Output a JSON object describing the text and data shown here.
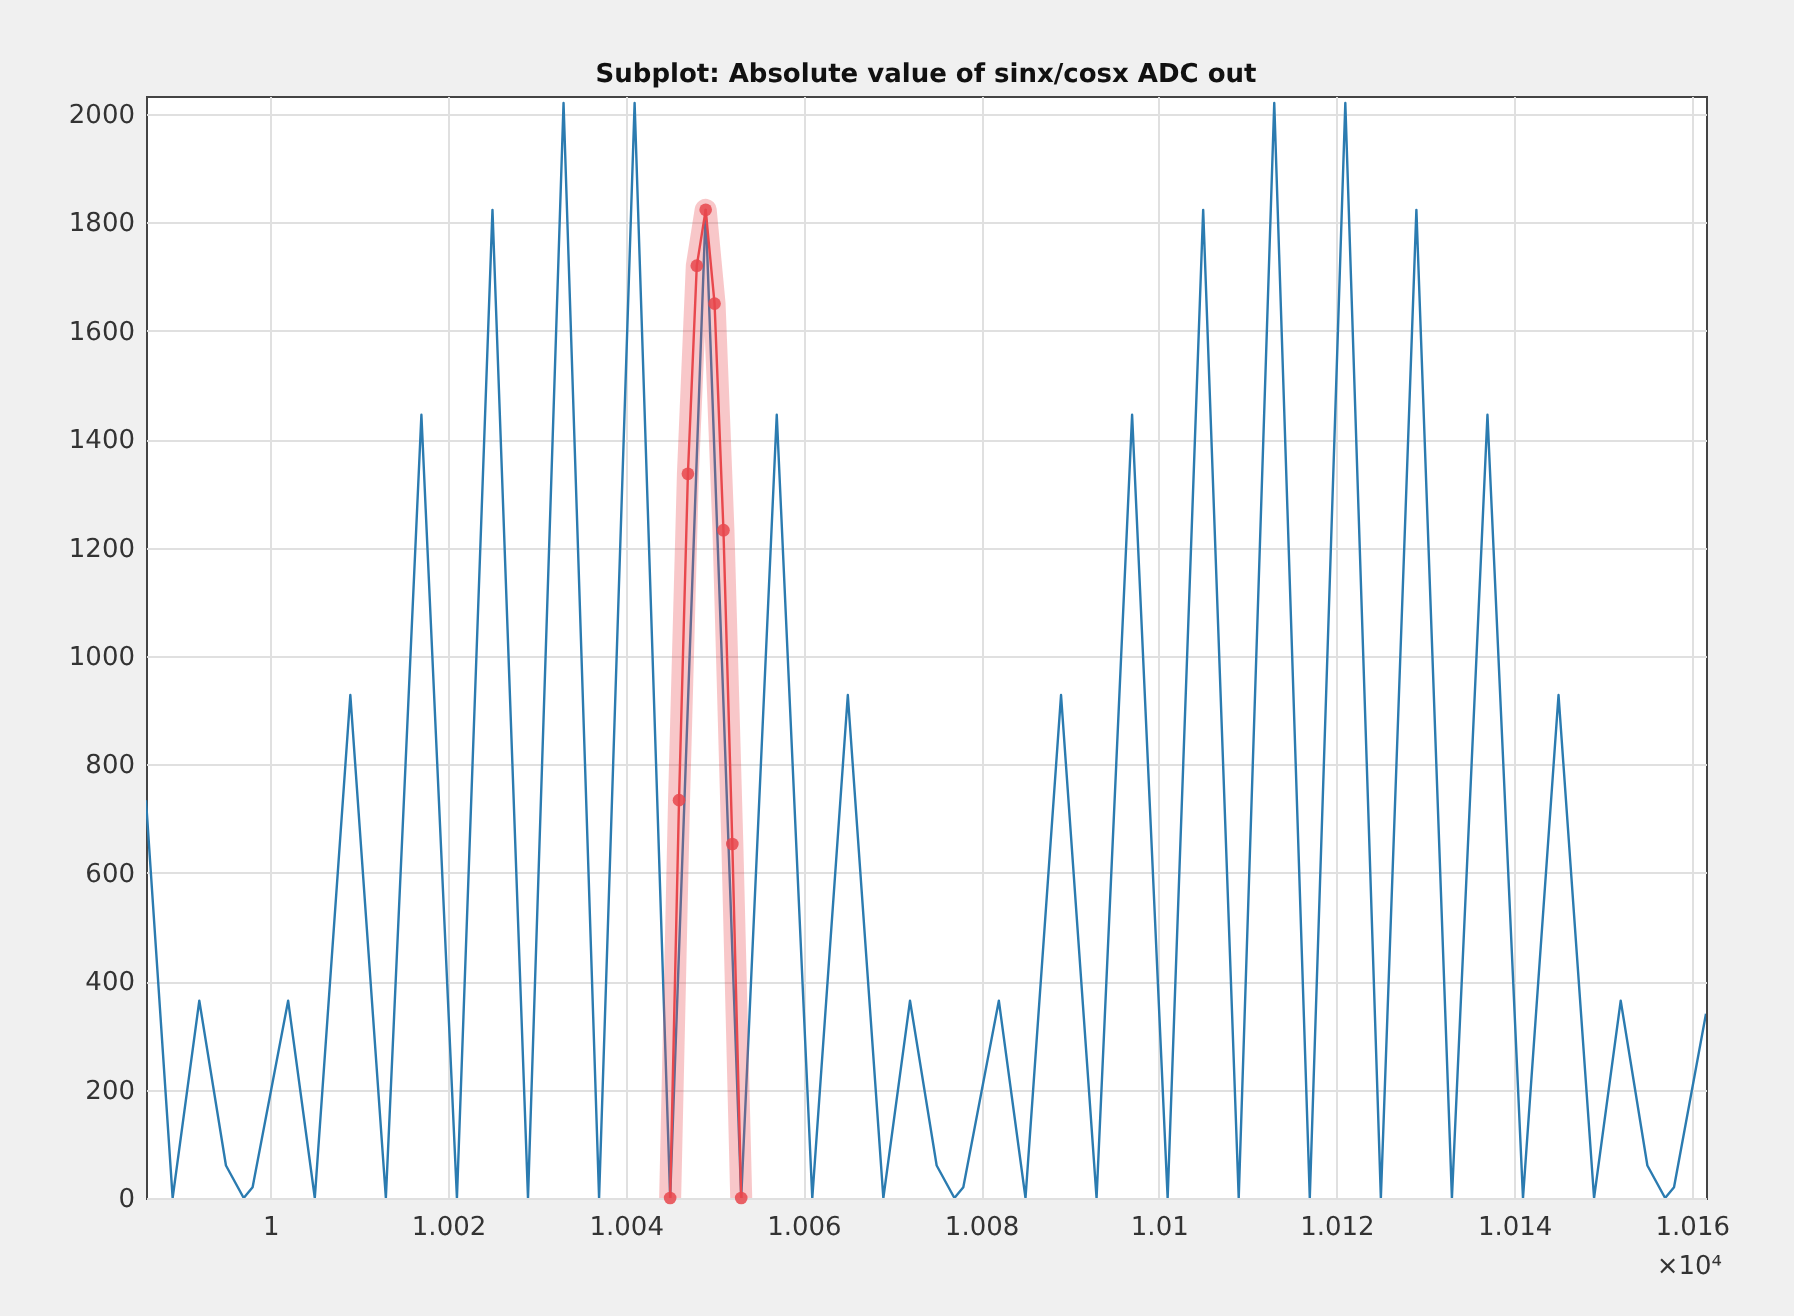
{
  "chart_data": {
    "type": "line",
    "title": "Subplot: Absolute value of sinx/cosx ADC out",
    "xlim": [
      0.9986,
      1.01616
    ],
    "ylim": [
      0,
      2033
    ],
    "xticks": [
      1,
      1.002,
      1.004,
      1.006,
      1.008,
      1.01,
      1.012,
      1.014,
      1.016
    ],
    "yticks": [
      0,
      200,
      400,
      600,
      800,
      1000,
      1200,
      1400,
      1600,
      1800,
      2000
    ],
    "grid": true,
    "annotations": [
      "×10⁴"
    ],
    "series": [
      {
        "color": "#2b7bb0",
        "marker": "none",
        "x": [
          0.9986,
          0.9989,
          0.9992,
          0.9995,
          0.9997,
          0.9998,
          1.0002,
          1.0005,
          1.0009,
          1.0013,
          1.0017,
          1.0021,
          1.0025,
          1.0029,
          1.0033,
          1.0037,
          1.0041,
          1.0045,
          1.0049,
          1.0053,
          1.0057,
          1.0061,
          1.0065,
          1.0069,
          1.0072,
          1.0075,
          1.0077,
          1.0078,
          1.0082,
          1.0085,
          1.0089,
          1.0093,
          1.0097,
          1.0101,
          1.0105,
          1.0109,
          1.0113,
          1.0117,
          1.0121,
          1.0125,
          1.0129,
          1.0133,
          1.0137,
          1.0141,
          1.0145,
          1.0149,
          1.0152,
          1.0155,
          1.0157,
          1.0158,
          1.01616
        ],
        "values": [
          734,
          0,
          364,
          60,
          0,
          20,
          364,
          0,
          928,
          0,
          1445,
          0,
          1823,
          0,
          2020,
          0,
          2020,
          0,
          1823,
          0,
          1445,
          0,
          928,
          0,
          364,
          60,
          0,
          20,
          364,
          0,
          928,
          0,
          1445,
          0,
          1823,
          0,
          2020,
          0,
          2020,
          0,
          1823,
          0,
          1445,
          0,
          928,
          0,
          364,
          60,
          0,
          20,
          340
        ]
      },
      {
        "color": "#e8474c",
        "marker": "circle",
        "x": [
          1.0045,
          1.0046,
          1.0047,
          1.0048,
          1.0049,
          1.005,
          1.0051,
          1.0052,
          1.0053
        ],
        "values": [
          0,
          734,
          1336,
          1720,
          1823,
          1650,
          1232,
          653,
          0
        ]
      }
    ]
  }
}
